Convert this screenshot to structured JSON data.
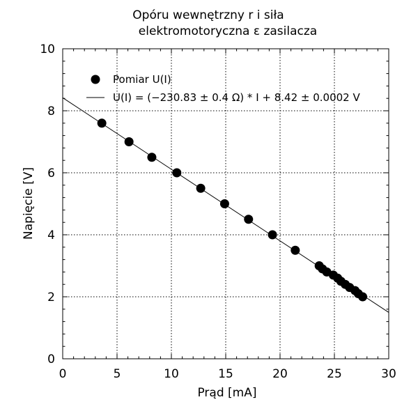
{
  "chart_data": {
    "type": "scatter",
    "title_lines": [
      "Opóru wewnętrzny r i siła",
      "elektromotoryczna ε zasilacza"
    ],
    "xlabel": "Prąd [mA]",
    "ylabel": "Napięcie [V]",
    "xlim": [
      0,
      30
    ],
    "ylim": [
      0,
      10
    ],
    "xticks": [
      0,
      5,
      10,
      15,
      20,
      25,
      30
    ],
    "yticks": [
      0,
      2,
      4,
      6,
      8,
      10
    ],
    "grid": true,
    "legend_position": "top-left",
    "series": [
      {
        "name": "Pomiar U(I)",
        "type": "scatter",
        "color": "#000000",
        "points": [
          [
            3.6,
            7.6
          ],
          [
            6.1,
            7.0
          ],
          [
            8.2,
            6.5
          ],
          [
            10.5,
            6.0
          ],
          [
            12.7,
            5.5
          ],
          [
            14.9,
            5.0
          ],
          [
            17.1,
            4.5
          ],
          [
            19.3,
            4.0
          ],
          [
            21.4,
            3.5
          ],
          [
            23.6,
            3.0
          ],
          [
            23.9,
            2.9
          ],
          [
            24.3,
            2.8
          ],
          [
            24.9,
            2.7
          ],
          [
            25.3,
            2.6
          ],
          [
            25.6,
            2.5
          ],
          [
            26.0,
            2.4
          ],
          [
            26.4,
            2.3
          ],
          [
            26.9,
            2.2
          ],
          [
            27.2,
            2.1
          ],
          [
            27.6,
            2.0
          ]
        ]
      },
      {
        "name": "U(I) = (−230.83 ± 0.4 Ω) * I + 8.42 ± 0.0002 V",
        "type": "line",
        "color": "#000000",
        "slope": -0.23083,
        "intercept": 8.42
      }
    ]
  }
}
